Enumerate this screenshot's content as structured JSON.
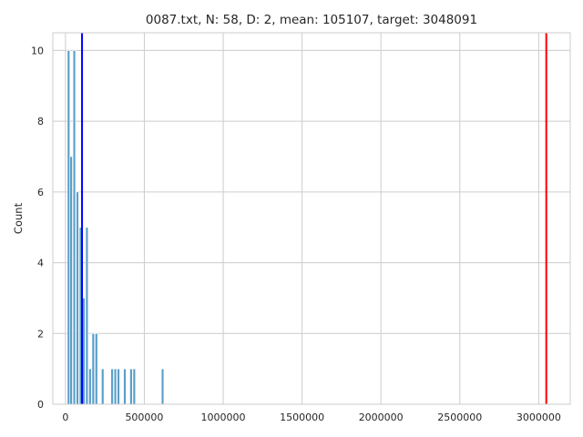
{
  "chart_data": {
    "type": "bar",
    "title": "0087.txt, N: 58, D: 2, mean: 105107, target: 3048091",
    "xlabel": "",
    "ylabel": "Count",
    "xlim": [
      -80000,
      3200000
    ],
    "ylim": [
      0,
      10.5
    ],
    "xticks": [
      0,
      500000,
      1000000,
      1500000,
      2000000,
      2500000,
      3000000
    ],
    "xtick_labels": [
      "0",
      "500000",
      "1000000",
      "1500000",
      "2000000",
      "2500000",
      "3000000"
    ],
    "yticks": [
      0,
      2,
      4,
      6,
      8,
      10
    ],
    "ytick_labels": [
      "0",
      "2",
      "4",
      "6",
      "8",
      "10"
    ],
    "grid": true,
    "bar_color": "#5b9fc9",
    "bar_edge_color": "#ffffff",
    "bins": [
      {
        "x": 20000,
        "count": 10
      },
      {
        "x": 36000,
        "count": 7
      },
      {
        "x": 56000,
        "count": 10
      },
      {
        "x": 76000,
        "count": 6
      },
      {
        "x": 96000,
        "count": 5
      },
      {
        "x": 116000,
        "count": 3
      },
      {
        "x": 136000,
        "count": 5
      },
      {
        "x": 156000,
        "count": 1
      },
      {
        "x": 176000,
        "count": 2
      },
      {
        "x": 196000,
        "count": 2
      },
      {
        "x": 236000,
        "count": 1
      },
      {
        "x": 296000,
        "count": 1
      },
      {
        "x": 316000,
        "count": 1
      },
      {
        "x": 336000,
        "count": 1
      },
      {
        "x": 376000,
        "count": 1
      },
      {
        "x": 416000,
        "count": 1
      },
      {
        "x": 436000,
        "count": 1
      },
      {
        "x": 616000,
        "count": 1
      }
    ],
    "bin_width": 16000,
    "vlines": [
      {
        "name": "mean",
        "x": 105107,
        "color": "#0000ff"
      },
      {
        "name": "target",
        "x": 3048091,
        "color": "#ff0000"
      }
    ]
  }
}
